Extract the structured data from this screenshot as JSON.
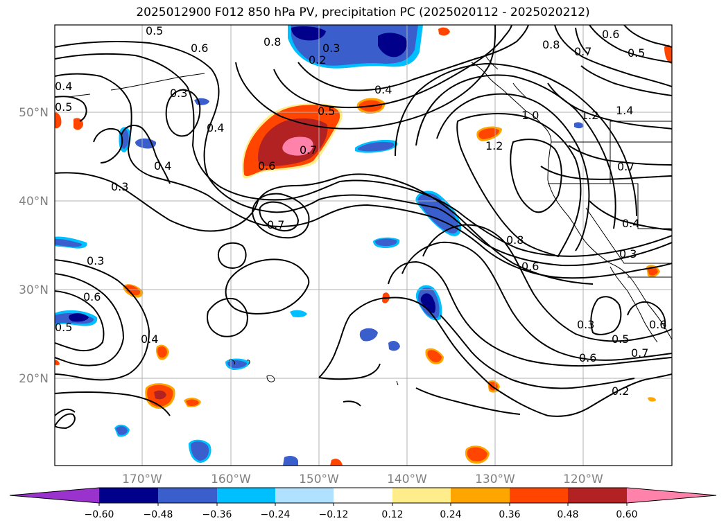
{
  "title": "2025012900 F012 850 hPa PV, precipitation PC (2025020112 - 2025020212)",
  "lon_labels": [
    "170°W",
    "160°W",
    "150°W",
    "140°W",
    "130°W",
    "120°W"
  ],
  "lat_labels": [
    "50°N",
    "40°N",
    "30°N",
    "20°N"
  ],
  "colorbar": {
    "ticks": [
      "−0.60",
      "−0.48",
      "−0.36",
      "−0.24",
      "−0.12",
      "0.12",
      "0.24",
      "0.36",
      "0.48",
      "0.60"
    ],
    "colors": [
      "#9a32cd",
      "#00008b",
      "#3a5fcd",
      "#00bfff",
      "#b0e2ff",
      "#ffffff",
      "#ffec8b",
      "#ffa500",
      "#ff4500",
      "#b22222",
      "#ff82ab"
    ]
  },
  "contour_labels": [
    "0.5",
    "0.6",
    "0.8",
    "0.3",
    "0.2",
    "0.6",
    "0.5",
    "0.8",
    "0.7",
    "0.4",
    "0.5",
    "0.3",
    "0.4",
    "0.4",
    "0.5",
    "0.7",
    "0.6",
    "0.4",
    "1.0",
    "1.2",
    "1.4",
    "1.2",
    "0.3",
    "0.7",
    "0.7",
    "0.4",
    "0.8",
    "0.3",
    "0.6",
    "0.3",
    "0.6",
    "0.5",
    "0.4",
    "0.3",
    "0.6",
    "0.5",
    "0.7",
    "0.6",
    "0.2"
  ]
}
